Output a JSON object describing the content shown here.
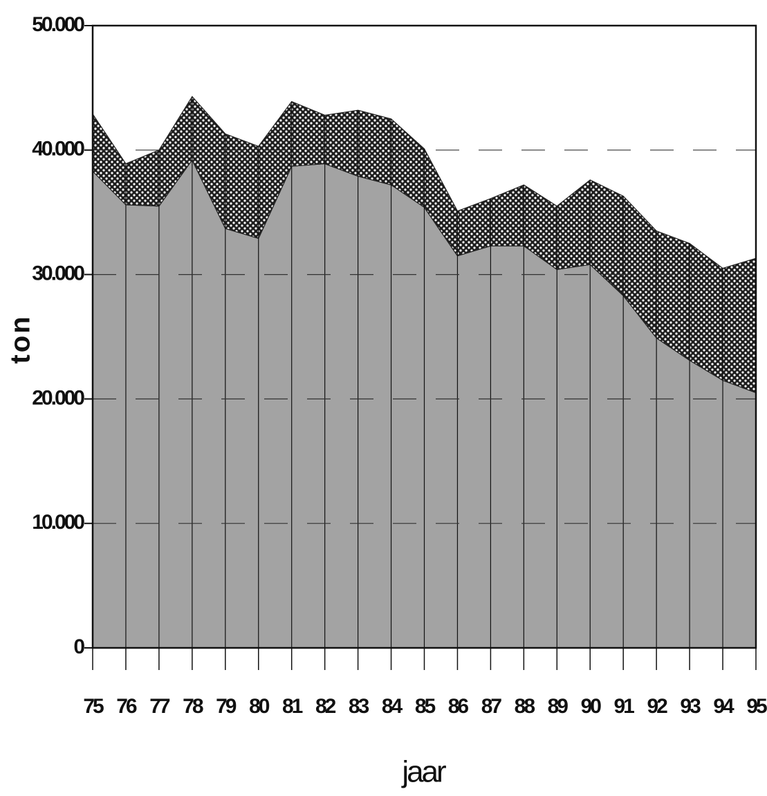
{
  "chart_data": {
    "type": "stacked_area",
    "x_label": "jaar",
    "y_label": "ton",
    "categories": [
      "75",
      "76",
      "77",
      "78",
      "79",
      "80",
      "81",
      "82",
      "83",
      "84",
      "85",
      "86",
      "87",
      "88",
      "89",
      "90",
      "91",
      "92",
      "93",
      "94",
      "95"
    ],
    "series": [
      {
        "color": "#a3a3a3",
        "pattern": "solid",
        "values": [
          38300,
          35600,
          35500,
          39200,
          33700,
          32900,
          38700,
          38900,
          37900,
          37200,
          35400,
          31500,
          32300,
          32300,
          30400,
          30800,
          28300,
          24900,
          23100,
          21500,
          20500
        ]
      },
      {
        "color": "#1e1e1e",
        "pattern": "dots",
        "values": [
          4600,
          3300,
          4500,
          5100,
          7600,
          7400,
          5200,
          3900,
          5300,
          5300,
          4700,
          3600,
          3800,
          4900,
          5100,
          6800,
          8000,
          8600,
          9400,
          9000,
          10800
        ]
      }
    ],
    "ylim": [
      0,
      50000
    ],
    "yticks": [
      0,
      {
        "value": 10000,
        "label": "10.000"
      },
      {
        "value": 20000,
        "label": "20.000"
      },
      {
        "value": 30000,
        "label": "30.000"
      },
      {
        "value": 40000,
        "label": "40.000"
      },
      {
        "value": 50000,
        "label": "50.000"
      }
    ],
    "grid": true
  }
}
